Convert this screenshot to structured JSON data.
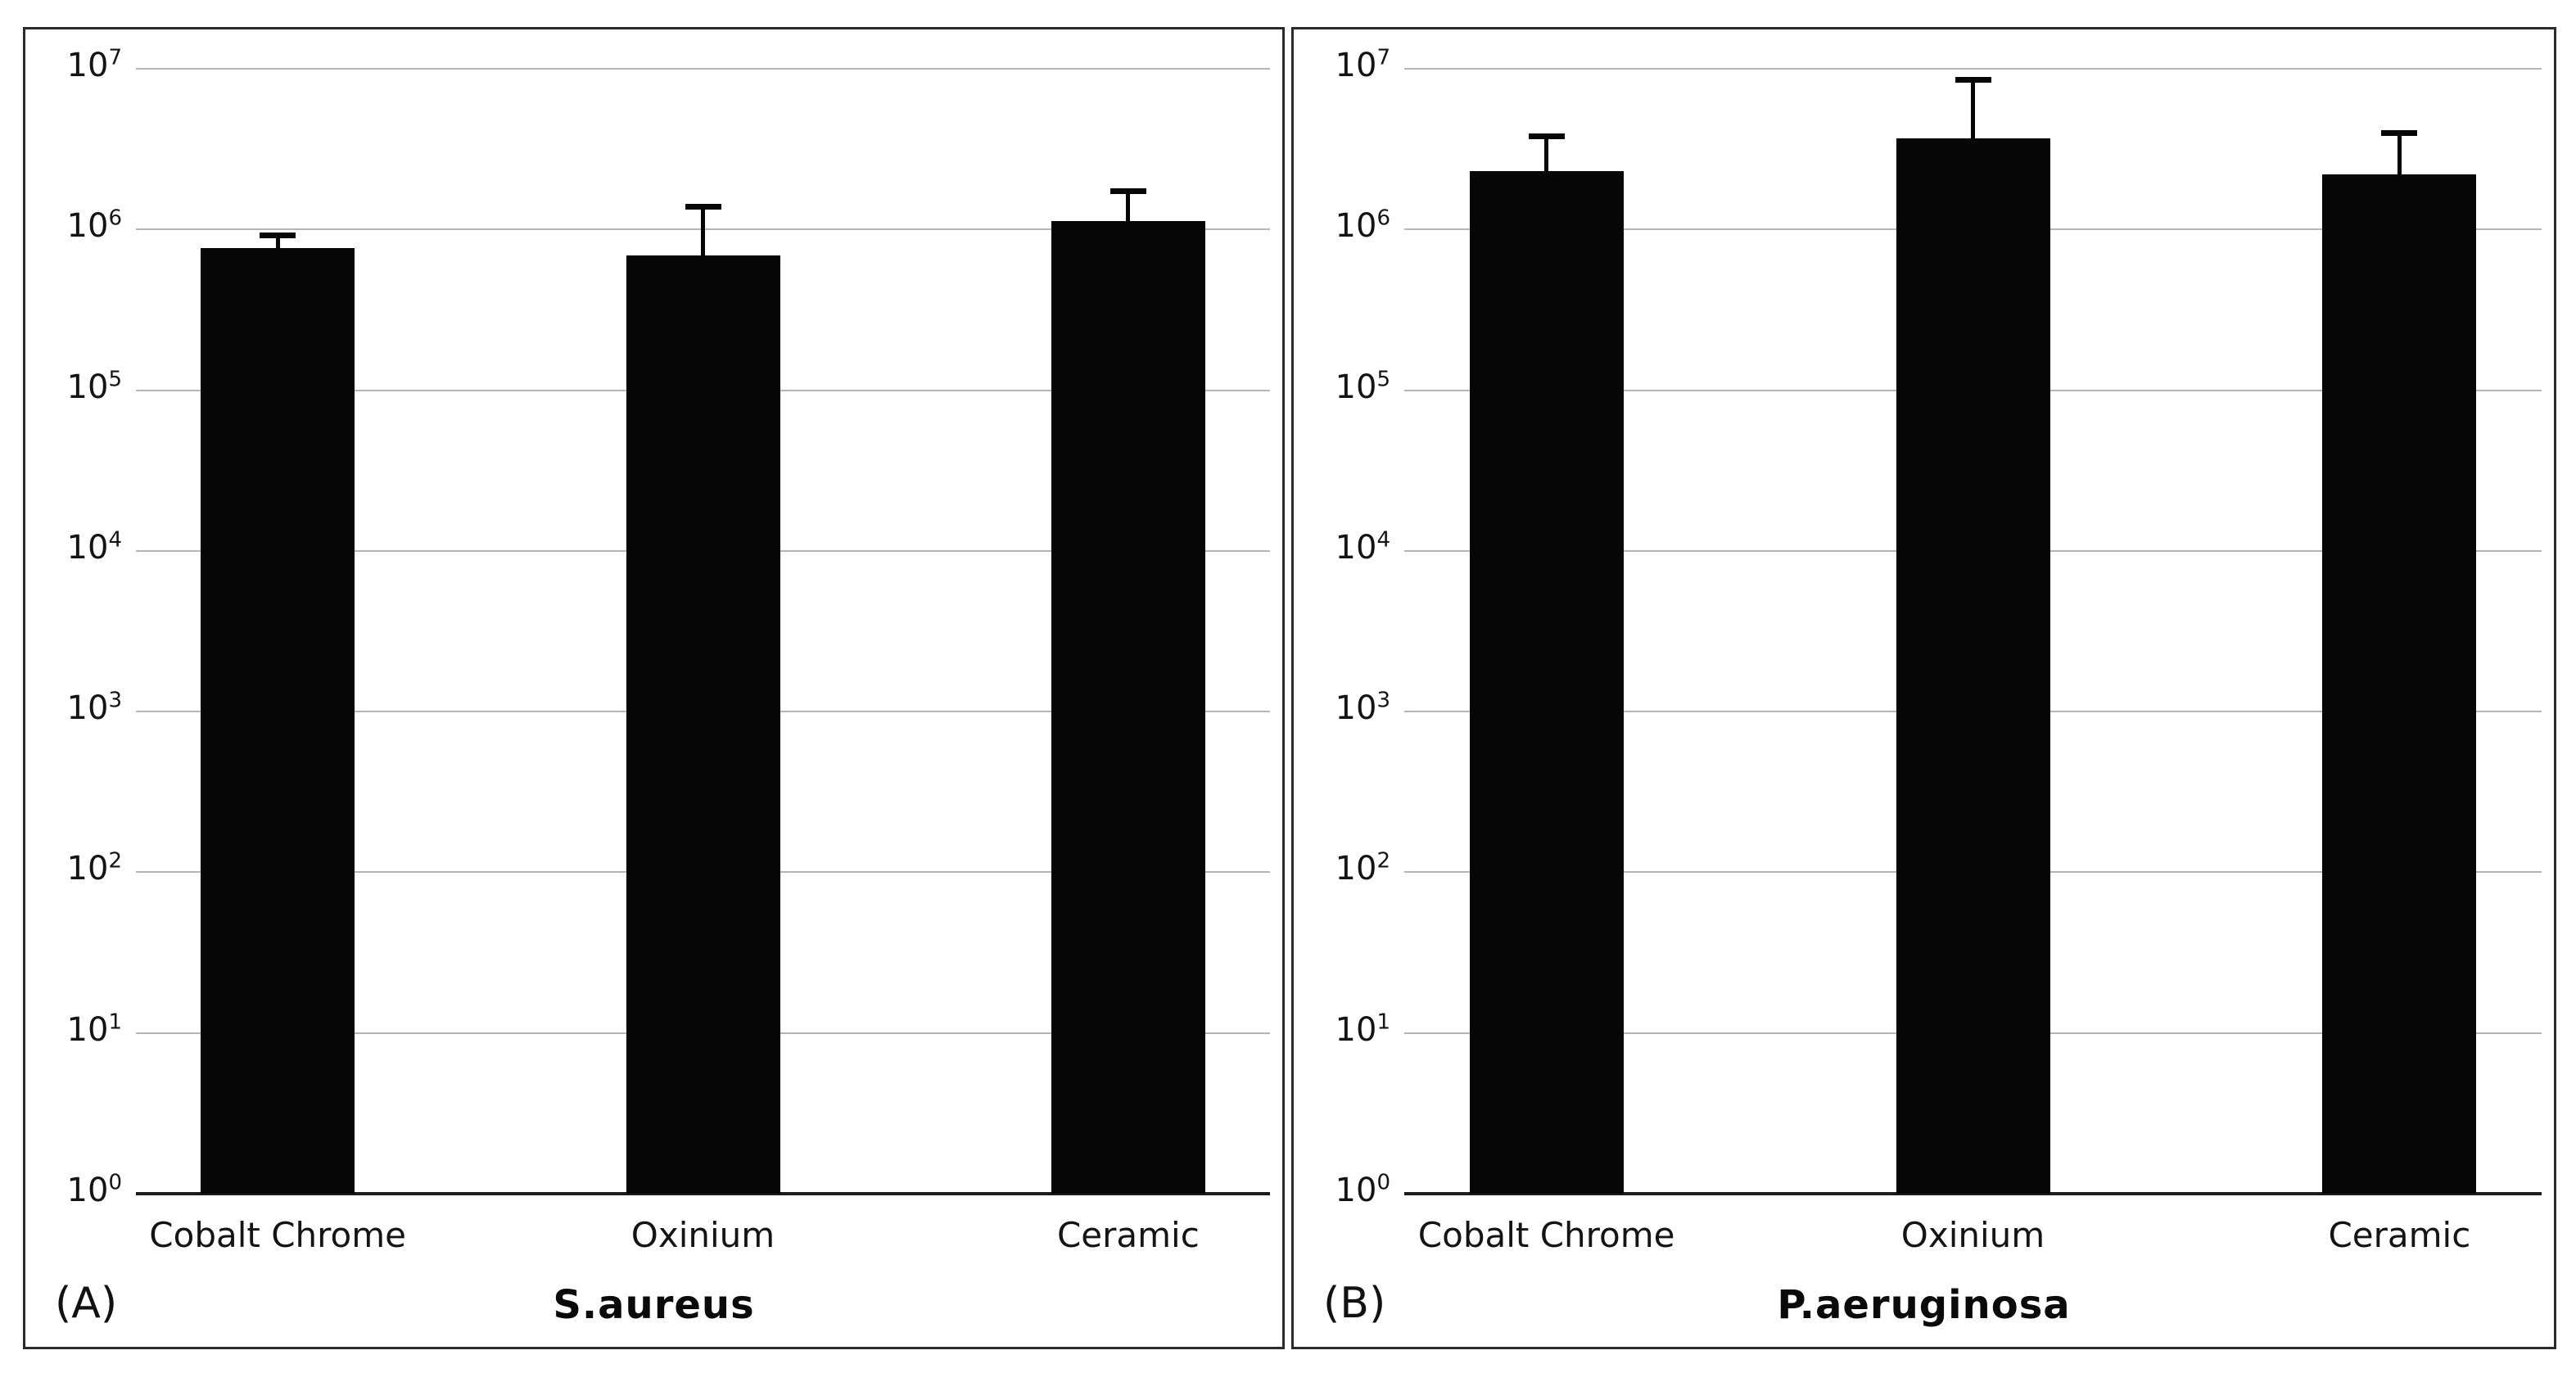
{
  "figure": {
    "background": "#ffffff",
    "panel_border_color": "#2b2b2b",
    "gridline_color": "#b5b5b5",
    "axis_line_color": "#1c1c1c",
    "bar_color": "#060606",
    "text_color": "#141414"
  },
  "y_axis": {
    "scale": "log",
    "tick_base": "10",
    "tick_exponents": [
      7,
      6,
      5,
      4,
      3,
      2,
      1,
      0
    ],
    "tick_labels": [
      "10^7",
      "10^6",
      "10^5",
      "10^4",
      "10^3",
      "10^2",
      "10^1",
      "10^0"
    ],
    "min": 1,
    "max": 10000000,
    "grid": true
  },
  "chart_data": [
    {
      "type": "bar",
      "panel_label": "(A)",
      "title": "S.aureus",
      "categories": [
        "Cobalt Chrome",
        "Oxinium",
        "Ceramic"
      ],
      "values": [
        770000,
        690000,
        1130000
      ],
      "error_upper": [
        920000,
        1400000,
        1750000
      ],
      "ylim": [
        1,
        10000000
      ],
      "yscale": "log",
      "legend": "none"
    },
    {
      "type": "bar",
      "panel_label": "(B)",
      "title": "P.aeruginosa",
      "categories": [
        "Cobalt Chrome",
        "Oxinium",
        "Ceramic"
      ],
      "values": [
        2300000,
        3700000,
        2200000
      ],
      "error_upper": [
        3800000,
        8600000,
        4000000
      ],
      "ylim": [
        1,
        10000000
      ],
      "yscale": "log",
      "legend": "none"
    }
  ]
}
